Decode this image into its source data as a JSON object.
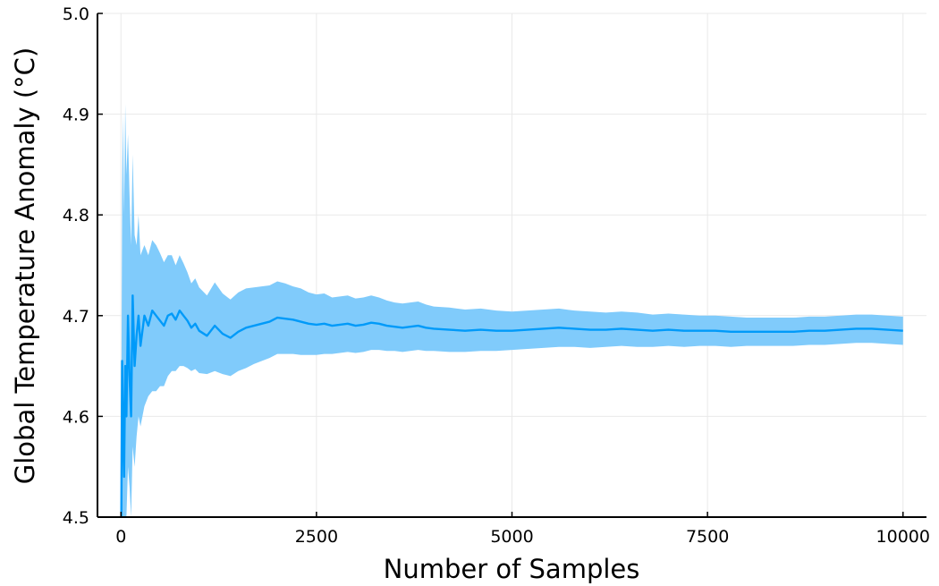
{
  "chart_data": {
    "type": "line",
    "title": "",
    "xlabel": "Number of Samples",
    "ylabel": "Global Temperature Anomaly (°C)",
    "xlim": [
      -300,
      10300
    ],
    "ylim": [
      4.5,
      5.0
    ],
    "xticks": [
      0,
      2500,
      5000,
      7500,
      10000
    ],
    "xtick_labels": [
      "0",
      "2500",
      "5000",
      "7500",
      "10000"
    ],
    "yticks": [
      4.5,
      4.6,
      4.7,
      4.8,
      4.9,
      5.0
    ],
    "ytick_labels": [
      "4.5",
      "4.6",
      "4.7",
      "4.8",
      "4.9",
      "5.0"
    ],
    "grid": true,
    "legend": "none",
    "colors": {
      "line": "#009af9",
      "band": "#80cbfb"
    },
    "series": [
      {
        "x": [
          5,
          15,
          25,
          40,
          55,
          70,
          90,
          110,
          130,
          150,
          175,
          200,
          225,
          250,
          300,
          350,
          400,
          450,
          500,
          550,
          600,
          650,
          700,
          750,
          800,
          850,
          900,
          950,
          1000,
          1100,
          1200,
          1300,
          1400,
          1500,
          1600,
          1700,
          1800,
          1900,
          2000,
          2100,
          2200,
          2300,
          2400,
          2500,
          2600,
          2700,
          2800,
          2900,
          3000,
          3100,
          3200,
          3300,
          3400,
          3500,
          3600,
          3700,
          3800,
          3900,
          4000,
          4200,
          4400,
          4600,
          4800,
          5000,
          5200,
          5400,
          5600,
          5800,
          6000,
          6200,
          6400,
          6600,
          6800,
          7000,
          7200,
          7400,
          7600,
          7800,
          8000,
          8200,
          8400,
          8600,
          8800,
          9000,
          9200,
          9400,
          9600,
          9800,
          10000
        ],
        "y": [
          4.5,
          4.655,
          4.6,
          4.54,
          4.65,
          4.6,
          4.7,
          4.64,
          4.6,
          4.72,
          4.65,
          4.68,
          4.7,
          4.67,
          4.7,
          4.69,
          4.705,
          4.7,
          4.695,
          4.69,
          4.7,
          4.702,
          4.696,
          4.705,
          4.7,
          4.695,
          4.688,
          4.692,
          4.685,
          4.68,
          4.69,
          4.682,
          4.678,
          4.684,
          4.688,
          4.69,
          4.692,
          4.694,
          4.698,
          4.697,
          4.696,
          4.694,
          4.692,
          4.691,
          4.692,
          4.69,
          4.691,
          4.692,
          4.69,
          4.691,
          4.693,
          4.692,
          4.69,
          4.689,
          4.688,
          4.689,
          4.69,
          4.688,
          4.687,
          4.686,
          4.685,
          4.686,
          4.685,
          4.685,
          4.686,
          4.687,
          4.688,
          4.687,
          4.686,
          4.686,
          4.687,
          4.686,
          4.685,
          4.686,
          4.685,
          4.685,
          4.685,
          4.684,
          4.684,
          4.684,
          4.684,
          4.684,
          4.685,
          4.685,
          4.686,
          4.687,
          4.687,
          4.686,
          4.685
        ],
        "lower": [
          4.5,
          4.5,
          4.5,
          4.5,
          4.5,
          4.5,
          4.55,
          4.53,
          4.5,
          4.57,
          4.55,
          4.58,
          4.6,
          4.59,
          4.61,
          4.62,
          4.625,
          4.625,
          4.63,
          4.63,
          4.64,
          4.645,
          4.645,
          4.65,
          4.65,
          4.648,
          4.645,
          4.647,
          4.643,
          4.642,
          4.645,
          4.642,
          4.64,
          4.645,
          4.648,
          4.652,
          4.655,
          4.658,
          4.662,
          4.662,
          4.662,
          4.661,
          4.661,
          4.661,
          4.662,
          4.662,
          4.663,
          4.664,
          4.663,
          4.664,
          4.666,
          4.666,
          4.665,
          4.665,
          4.664,
          4.665,
          4.666,
          4.665,
          4.665,
          4.664,
          4.664,
          4.665,
          4.665,
          4.666,
          4.667,
          4.668,
          4.669,
          4.669,
          4.668,
          4.669,
          4.67,
          4.669,
          4.669,
          4.67,
          4.669,
          4.67,
          4.67,
          4.669,
          4.67,
          4.67,
          4.67,
          4.67,
          4.671,
          4.671,
          4.672,
          4.673,
          4.673,
          4.672,
          4.671
        ],
        "upper": [
          4.6,
          4.82,
          4.9,
          4.8,
          4.91,
          4.84,
          4.88,
          4.82,
          4.77,
          4.86,
          4.78,
          4.77,
          4.8,
          4.76,
          4.77,
          4.76,
          4.775,
          4.77,
          4.762,
          4.753,
          4.76,
          4.76,
          4.75,
          4.76,
          4.752,
          4.743,
          4.732,
          4.737,
          4.728,
          4.72,
          4.733,
          4.722,
          4.716,
          4.723,
          4.727,
          4.728,
          4.729,
          4.73,
          4.734,
          4.732,
          4.729,
          4.727,
          4.723,
          4.721,
          4.722,
          4.718,
          4.719,
          4.72,
          4.717,
          4.718,
          4.72,
          4.718,
          4.715,
          4.713,
          4.712,
          4.713,
          4.714,
          4.711,
          4.709,
          4.708,
          4.706,
          4.707,
          4.705,
          4.704,
          4.705,
          4.706,
          4.707,
          4.705,
          4.704,
          4.703,
          4.704,
          4.703,
          4.701,
          4.702,
          4.701,
          4.7,
          4.7,
          4.699,
          4.698,
          4.698,
          4.698,
          4.698,
          4.699,
          4.699,
          4.7,
          4.701,
          4.701,
          4.7,
          4.699
        ]
      }
    ]
  }
}
